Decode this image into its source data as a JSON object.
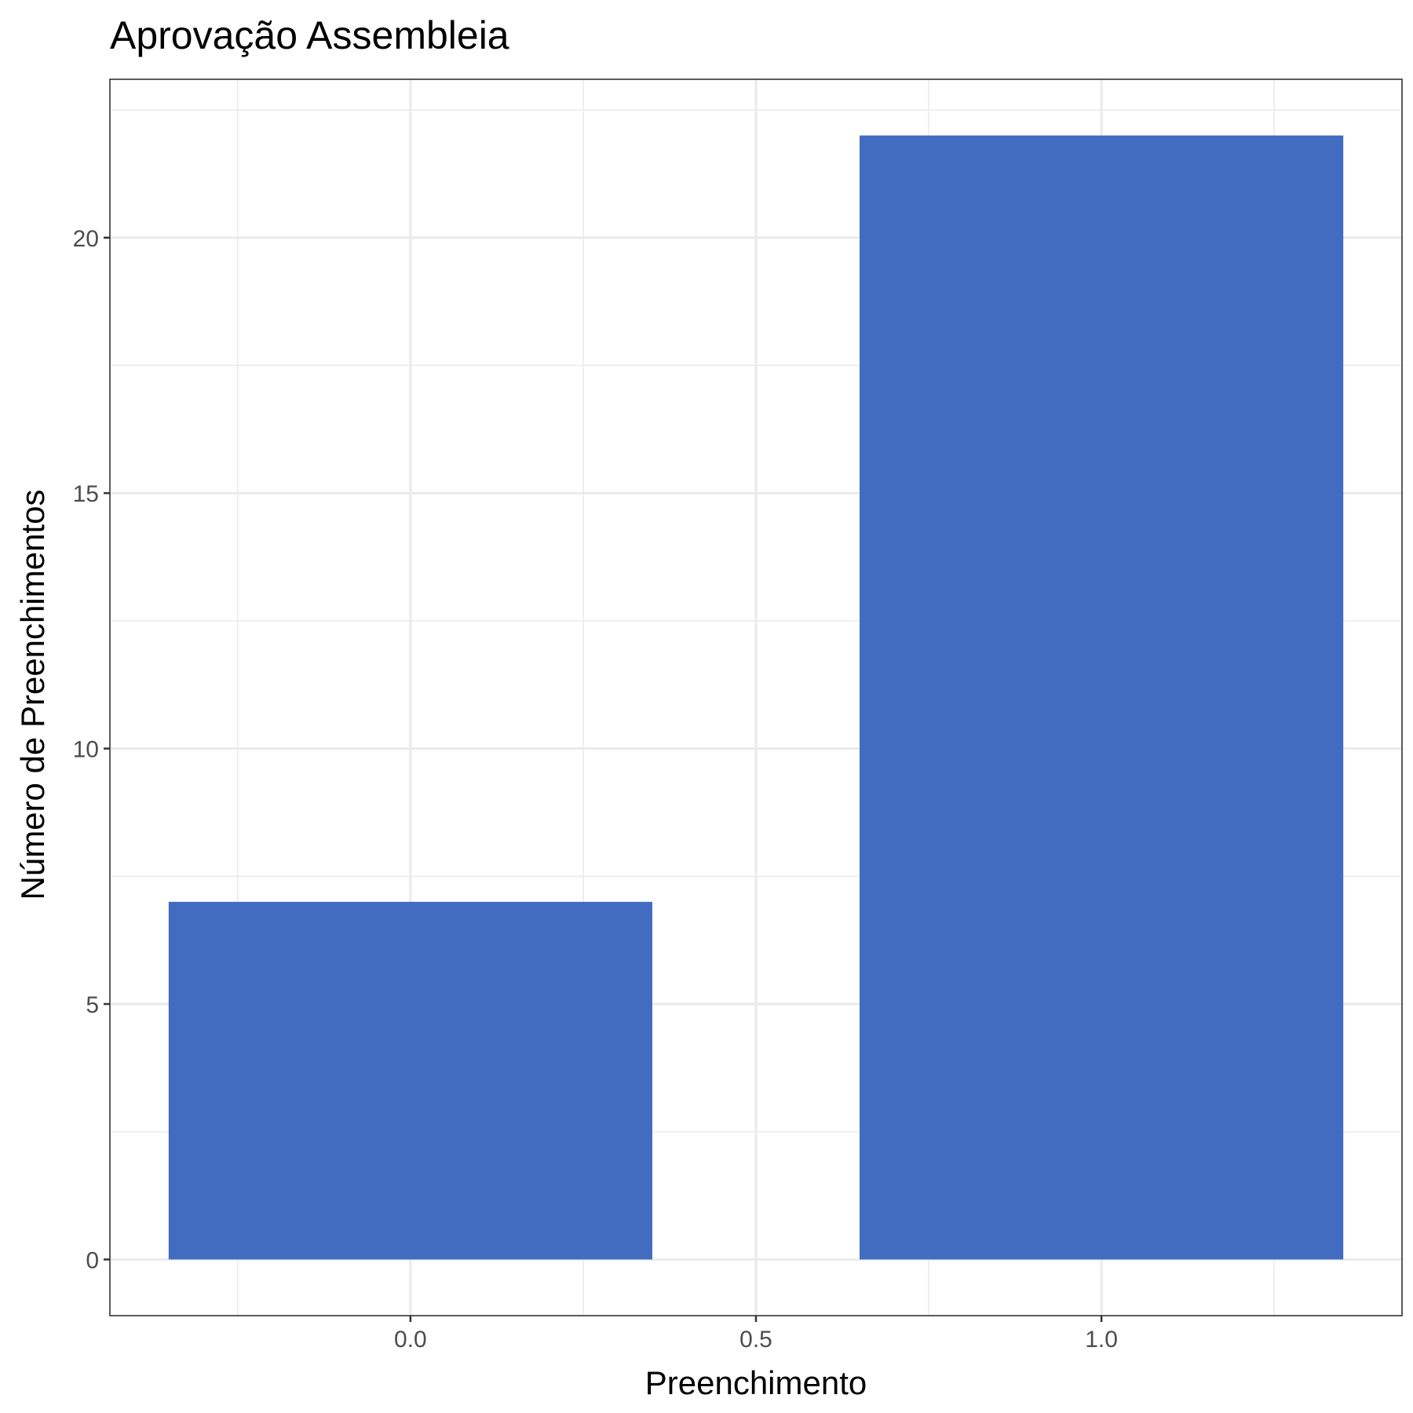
{
  "chart_data": {
    "type": "bar",
    "title": "Aprovação Assembleia",
    "xlabel": "Preenchimento",
    "ylabel": "Número de Preenchimentos",
    "x": [
      0,
      1
    ],
    "values": [
      7,
      22
    ],
    "bar_width": 0.7,
    "xlim": [
      -0.435,
      1.435
    ],
    "ylim": [
      -1.1,
      23.1
    ],
    "x_ticks": [
      0.0,
      0.5,
      1.0
    ],
    "x_tick_labels": [
      "0.0",
      "0.5",
      "1.0"
    ],
    "y_ticks": [
      0,
      5,
      10,
      15,
      20
    ],
    "y_tick_labels": [
      "0",
      "5",
      "10",
      "15",
      "20"
    ],
    "x_minor_ticks": [
      -0.25,
      0.25,
      0.75,
      1.25
    ],
    "y_minor_ticks": [
      2.5,
      7.5,
      12.5,
      17.5,
      22.5
    ],
    "grid": true,
    "legend": "none",
    "colors": {
      "bar": "#426cc0",
      "grid": "#ebebeb",
      "panel_border": "#333333",
      "tick_text": "#4d4d4d",
      "text": "#000000"
    }
  }
}
